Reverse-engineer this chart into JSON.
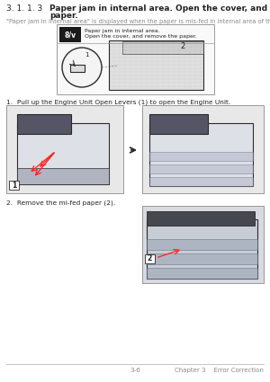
{
  "title_num": "3. 1. 1. 3",
  "title_bold_line1": "Paper jam in internal area. Open the cover, and remove the",
  "title_bold_line2": "paper.",
  "subtitle": "\"Paper jam in internal area\" is displayed when the paper is mis-fed in internal area of the machine.",
  "icon_text_line1": "Paper jam in internal area.",
  "icon_text_line2": "Open the cover, and remove the paper.",
  "label_num": "8/v",
  "diagram_label1": "1",
  "diagram_label2": "2",
  "step1_text": "1.  Pull up the Engine Unit Open Levers (1) to open the Engine Unit.",
  "step2_text": "2.  Remove the mi-fed paper (2).",
  "box1_label": "1",
  "box2_label": "2",
  "footer_center": "3-6",
  "footer_right": "Chapter 3    Error Correction",
  "bg_color": "#ffffff",
  "text_color": "#222222",
  "light_gray": "#888888",
  "footer_line_color": "#bbbbbb",
  "box_border_color": "#999999",
  "icon_bg": "#1a1a1a",
  "icon_text_color": "#ffffff",
  "diagram_box_bg": "#f9f9f9",
  "printer_dark": "#2a2a2a",
  "printer_mid": "#555566",
  "printer_light": "#c8ccd8",
  "printer_body": "#dde0e6",
  "arrow_color": "#ff2222",
  "img_bg": "#e8e8e8",
  "img2_bg": "#d8dae0"
}
